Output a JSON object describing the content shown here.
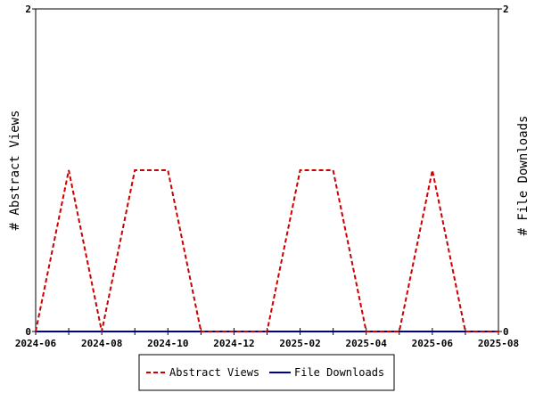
{
  "chart_data": {
    "type": "line",
    "x": [
      "2024-06",
      "2024-07",
      "2024-08",
      "2024-09",
      "2024-10",
      "2024-11",
      "2024-12",
      "2025-01",
      "2025-02",
      "2025-03",
      "2025-04",
      "2025-05",
      "2025-06",
      "2025-07",
      "2025-08"
    ],
    "xticks": [
      "2024-06",
      "2024-08",
      "2024-10",
      "2024-12",
      "2025-02",
      "2025-04",
      "2025-06",
      "2025-08"
    ],
    "series": [
      {
        "name": "Abstract Views",
        "axis": "left",
        "color": "#cc0000",
        "style": "dashed",
        "values": [
          0,
          1,
          0,
          1,
          1,
          0,
          0,
          0,
          1,
          1,
          0,
          0,
          1,
          0,
          0
        ]
      },
      {
        "name": "File Downloads",
        "axis": "right",
        "color": "#000099",
        "style": "solid",
        "values": [
          0,
          0,
          0,
          0,
          0,
          0,
          0,
          0,
          0,
          0,
          0,
          0,
          0,
          0,
          0
        ]
      }
    ],
    "ylabel": "# Abstract Views",
    "y2label": "# File Downloads",
    "ylim": [
      0,
      2
    ],
    "y2lim": [
      0,
      2
    ],
    "yticks": [
      "0",
      "2"
    ],
    "y2ticks": [
      "0",
      "2"
    ],
    "grid": false,
    "legend": "bottom"
  }
}
